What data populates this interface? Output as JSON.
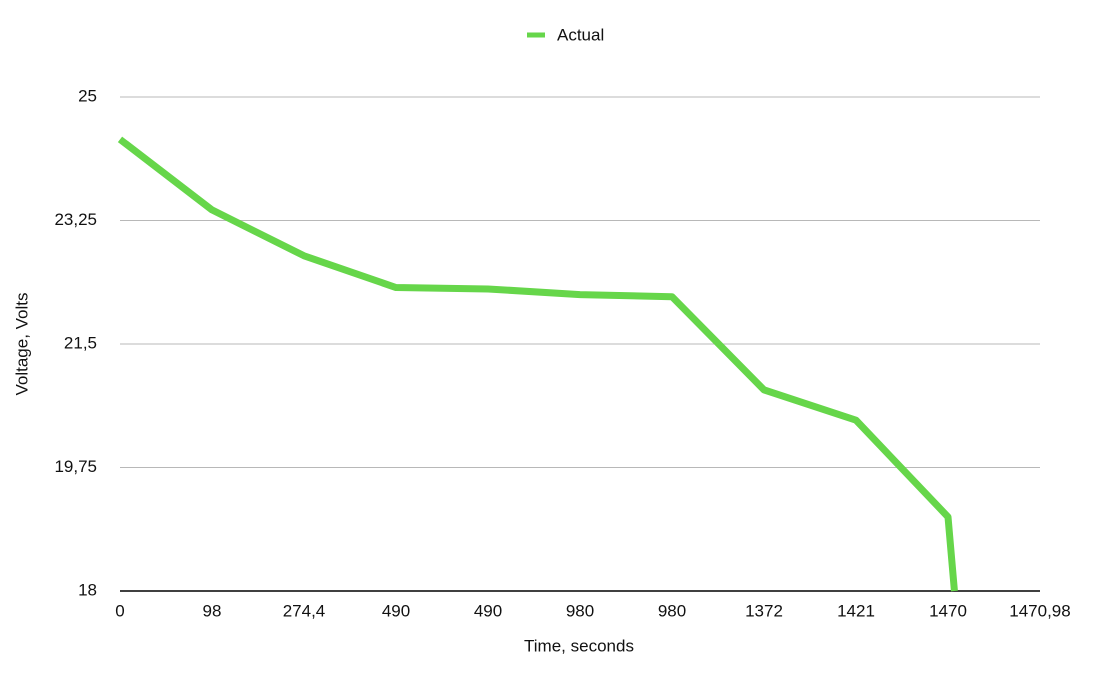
{
  "chart_data": {
    "type": "line",
    "legend": "top",
    "xlabel": "Time, seconds",
    "ylabel": "Voltage, Volts",
    "grid": true,
    "x": [
      0,
      1,
      2,
      3,
      4,
      5,
      6,
      7,
      8,
      9,
      9.07
    ],
    "xlim": [
      0,
      10
    ],
    "xticks": [
      0,
      {
        "value": 1,
        "label": "98"
      },
      {
        "value": 2,
        "label": "274,4"
      },
      {
        "value": 3,
        "label": "490"
      },
      {
        "value": 4,
        "label": "490"
      },
      {
        "value": 5,
        "label": "980"
      },
      {
        "value": 6,
        "label": "980"
      },
      {
        "value": 7,
        "label": "1372"
      },
      {
        "value": 8,
        "label": "1421"
      },
      {
        "value": 9,
        "label": "1470"
      },
      {
        "value": 10,
        "label": "1470,98"
      }
    ],
    "ylim": [
      18,
      25
    ],
    "yticks": [
      18,
      {
        "value": 19.75,
        "label": "19,75"
      },
      {
        "value": 21.5,
        "label": "21,5"
      },
      {
        "value": 23.25,
        "label": "23,25"
      },
      25
    ],
    "series": [
      {
        "name": "Actual",
        "color": "#66d64a",
        "values": [
          24.4,
          23.4,
          22.75,
          22.3,
          22.28,
          22.2,
          22.17,
          20.85,
          20.42,
          19.05,
          18
        ]
      }
    ]
  }
}
